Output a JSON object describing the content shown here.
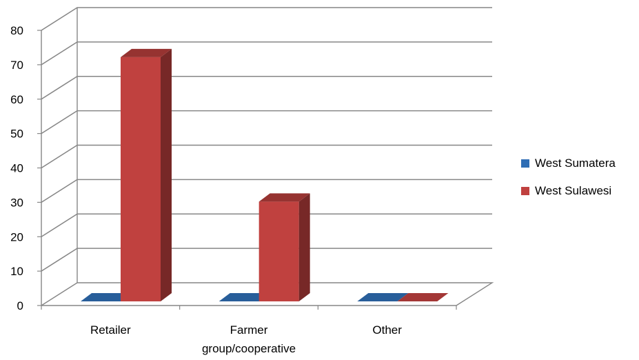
{
  "chart_data": {
    "type": "bar",
    "categories": [
      "Retailer",
      "Farmer group/cooperative",
      "Other"
    ],
    "category_label_lines": [
      [
        "Retailer"
      ],
      [
        "Farmer",
        "group/cooperative"
      ],
      [
        "Other"
      ]
    ],
    "series": [
      {
        "name": "West Sumatera",
        "values": [
          0,
          0,
          0
        ],
        "color": "#2F6EB5"
      },
      {
        "name": "West Sulawesi",
        "values": [
          71,
          29,
          0
        ],
        "color": "#C0413F"
      }
    ],
    "ylim": [
      0,
      80
    ],
    "yticks": [
      0,
      10,
      20,
      30,
      40,
      50,
      60,
      70,
      80
    ],
    "grid": true,
    "legend_position": "right",
    "style": "3d-clustered-column"
  },
  "legend": {
    "items": [
      {
        "label": "West Sumatera",
        "color": "#2F6EB5"
      },
      {
        "label": "West Sulawesi",
        "color": "#C0413F"
      }
    ]
  }
}
